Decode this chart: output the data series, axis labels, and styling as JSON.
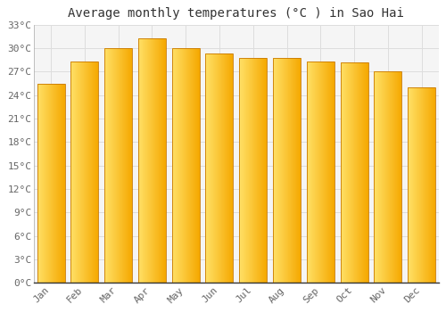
{
  "title": "Average monthly temperatures (°C ) in Sao Hai",
  "months": [
    "Jan",
    "Feb",
    "Mar",
    "Apr",
    "May",
    "Jun",
    "Jul",
    "Aug",
    "Sep",
    "Oct",
    "Nov",
    "Dec"
  ],
  "values": [
    25.5,
    28.3,
    30.0,
    31.2,
    30.0,
    29.3,
    28.7,
    28.7,
    28.3,
    28.2,
    27.0,
    25.0
  ],
  "bar_color_left": "#FFE066",
  "bar_color_right": "#F5A800",
  "bar_color_border": "#C87800",
  "plot_bg_color": "#f5f5f5",
  "background_color": "#ffffff",
  "grid_color": "#dddddd",
  "ylim": [
    0,
    33
  ],
  "yticks": [
    0,
    3,
    6,
    9,
    12,
    15,
    18,
    21,
    24,
    27,
    30,
    33
  ],
  "ytick_labels": [
    "0°C",
    "3°C",
    "6°C",
    "9°C",
    "12°C",
    "15°C",
    "18°C",
    "21°C",
    "24°C",
    "27°C",
    "30°C",
    "33°C"
  ],
  "title_fontsize": 10,
  "tick_fontsize": 8,
  "font_family": "monospace",
  "bar_width": 0.82
}
